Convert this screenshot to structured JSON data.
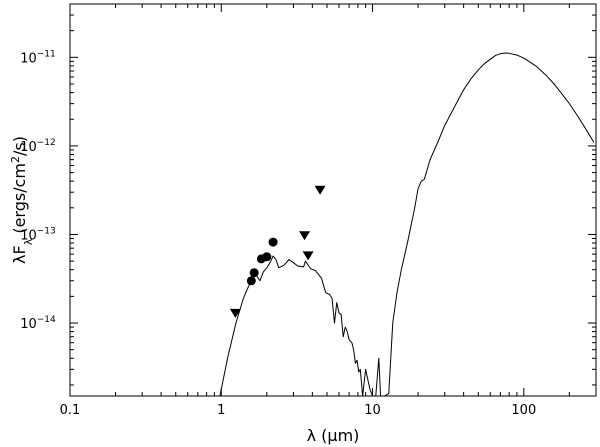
{
  "chart_data": {
    "type": "line",
    "xscale": "log",
    "yscale": "log",
    "xlim": [
      0.1,
      300
    ],
    "ylim": [
      1.5e-15,
      4e-11
    ],
    "grid": false,
    "xlabel": "λ (μm)",
    "ylabel": {
      "prefix": "λF",
      "sub": "λ",
      "units_open": " (ergs/cm",
      "units_sup": "2",
      "units_close": "/s)"
    },
    "x_ticks": [
      {
        "value": 0.1,
        "label": "0.1"
      },
      {
        "value": 1,
        "label": "1"
      },
      {
        "value": 10,
        "label": "10"
      },
      {
        "value": 100,
        "label": "100"
      }
    ],
    "y_ticks": [
      {
        "value": 1e-14,
        "base": "10",
        "exp": "−14"
      },
      {
        "value": 1e-13,
        "base": "10",
        "exp": "−13"
      },
      {
        "value": 1e-12,
        "base": "10",
        "exp": "−12"
      },
      {
        "value": 1e-11,
        "base": "10",
        "exp": "−11"
      }
    ],
    "series": [
      {
        "kind": "model_sed",
        "style": "line",
        "color": "#000000",
        "points": [
          [
            0.98,
            1.5e-15
          ],
          [
            1.1,
            4e-15
          ],
          [
            1.25,
            1e-14
          ],
          [
            1.4,
            1.9e-14
          ],
          [
            1.5,
            2.5e-14
          ],
          [
            1.6,
            3.2e-14
          ],
          [
            1.7,
            3.5e-14
          ],
          [
            1.8,
            3e-14
          ],
          [
            1.9,
            3.8e-14
          ],
          [
            2.0,
            4.2e-14
          ],
          [
            2.1,
            4.8e-14
          ],
          [
            2.2,
            5.7e-14
          ],
          [
            2.3,
            5.2e-14
          ],
          [
            2.4,
            4.2e-14
          ],
          [
            2.6,
            4.5e-14
          ],
          [
            2.8,
            5.2e-14
          ],
          [
            3.0,
            4.8e-14
          ],
          [
            3.2,
            4.4e-14
          ],
          [
            3.5,
            4.3e-14
          ],
          [
            3.6,
            5e-14
          ],
          [
            3.9,
            4.1e-14
          ],
          [
            4.2,
            3.9e-14
          ],
          [
            4.6,
            3.2e-14
          ],
          [
            4.9,
            2.2e-14
          ],
          [
            5.2,
            2.1e-14
          ],
          [
            5.4,
            1.9e-14
          ],
          [
            5.6,
            1e-14
          ],
          [
            5.8,
            1.7e-14
          ],
          [
            6.0,
            1.3e-14
          ],
          [
            6.2,
            1.25e-14
          ],
          [
            6.4,
            7e-15
          ],
          [
            6.6,
            9e-15
          ],
          [
            6.8,
            8e-15
          ],
          [
            7.0,
            6.5e-15
          ],
          [
            7.3,
            6e-15
          ],
          [
            7.5,
            5e-15
          ],
          [
            7.7,
            3.5e-15
          ],
          [
            7.9,
            3.8e-15
          ],
          [
            8.1,
            2.8e-15
          ],
          [
            8.3,
            3e-15
          ],
          [
            8.6,
            1.5e-15
          ],
          [
            9.0,
            3e-15
          ],
          [
            9.6,
            1.8e-15
          ],
          [
            10.0,
            1.5e-15
          ],
          [
            10.5,
            1.5e-15
          ],
          [
            11.0,
            4e-15
          ],
          [
            11.3,
            1.5e-15
          ],
          [
            12.0,
            1.5e-15
          ],
          [
            12.8,
            1.6e-15
          ],
          [
            13.6,
            1e-14
          ],
          [
            14.5,
            2.2e-14
          ],
          [
            15.5,
            4e-14
          ],
          [
            17.0,
            8e-14
          ],
          [
            19.0,
            2e-13
          ],
          [
            20.0,
            3.3e-13
          ],
          [
            21.0,
            4e-13
          ],
          [
            22.0,
            4.2e-13
          ],
          [
            24.0,
            7e-13
          ],
          [
            27.0,
            1.1e-12
          ],
          [
            30.0,
            1.7e-12
          ],
          [
            35.0,
            2.8e-12
          ],
          [
            40.0,
            4.3e-12
          ],
          [
            45.0,
            5.8e-12
          ],
          [
            50.0,
            7.2e-12
          ],
          [
            55.0,
            8.5e-12
          ],
          [
            60.0,
            9.5e-12
          ],
          [
            65.0,
            1.05e-11
          ],
          [
            70.0,
            1.1e-11
          ],
          [
            75.0,
            1.12e-11
          ],
          [
            80.0,
            1.11e-11
          ],
          [
            90.0,
            1.06e-11
          ],
          [
            100.0,
            9.8e-12
          ],
          [
            120.0,
            8e-12
          ],
          [
            140.0,
            6.3e-12
          ],
          [
            160.0,
            4.9e-12
          ],
          [
            180.0,
            3.8e-12
          ],
          [
            200.0,
            3e-12
          ],
          [
            230.0,
            2.1e-12
          ],
          [
            260.0,
            1.5e-12
          ],
          [
            290.0,
            1.1e-12
          ]
        ]
      },
      {
        "kind": "detections",
        "style": "filled-circle",
        "color": "#000000",
        "points": [
          [
            1.58,
            3e-14
          ],
          [
            1.65,
            3.7e-14
          ],
          [
            1.84,
            5.3e-14
          ],
          [
            2.0,
            5.6e-14
          ],
          [
            2.2,
            8.2e-14
          ]
        ]
      },
      {
        "kind": "upper_limits",
        "style": "down-triangle",
        "color": "#000000",
        "points": [
          [
            1.24,
            1.3e-14
          ],
          [
            3.55,
            9.8e-14
          ],
          [
            3.75,
            5.8e-14
          ],
          [
            4.5,
            3.2e-13
          ]
        ]
      }
    ]
  }
}
